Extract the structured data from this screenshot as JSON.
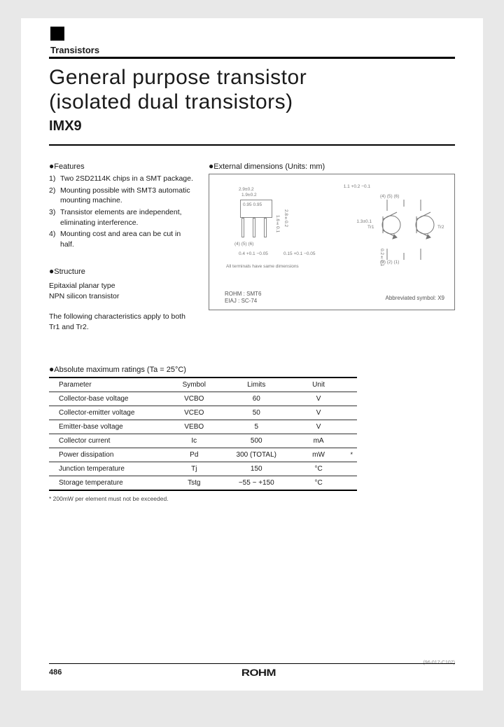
{
  "header": {
    "category": "Transistors"
  },
  "title": {
    "line1": "General purpose transistor",
    "line2": "(isolated dual transistors)"
  },
  "part_number": "IMX9",
  "features": {
    "heading": "Features",
    "items": [
      {
        "num": "1)",
        "text": "Two 2SD2114K chips in a SMT package."
      },
      {
        "num": "2)",
        "text": "Mounting possible with SMT3 automatic mounting machine."
      },
      {
        "num": "3)",
        "text": "Transistor elements are independent, eliminating interference."
      },
      {
        "num": "4)",
        "text": "Mounting cost and area can be cut in half."
      }
    ]
  },
  "structure": {
    "heading": "Structure",
    "line1": "Epitaxial planar type",
    "line2": "NPN silicon transistor"
  },
  "note": "The following characteristics apply to both Tr1 and Tr2.",
  "dimensions": {
    "heading": "External dimensions (Units: mm)",
    "labels": {
      "t1": "2.9±0.2",
      "t2": "1.9±0.2",
      "t3": "0.95 0.95",
      "t4": "1.6±0.1",
      "t5": "2.8±0.2",
      "t6": "0.4 +0.1 −0.05",
      "t7": "0.15 +0.1 −0.05",
      "t8": "1.1 +0.2 −0.1",
      "t9": "1.3±0.1",
      "t10": "0.2±0.1",
      "pins_l": "(4)  (5)  (6)",
      "pins_r": "(3)  (2)  (1)",
      "allnote": "All terminals have same dimensions",
      "rohm": "ROHM : SMT6",
      "eiaj": "EIAJ  : SC-74",
      "abbrev": "Abbreviated symbol: X9",
      "c_pins_t": "(4)  (5)  (6)",
      "c_pins_b": "(3)  (2)  (1)",
      "tr1": "Tr1",
      "tr2": "Tr2"
    }
  },
  "ratings": {
    "heading": "Absolute maximum ratings (Ta = 25°C)",
    "columns": [
      "Parameter",
      "Symbol",
      "Limits",
      "Unit"
    ],
    "rows": [
      {
        "param": "Collector-base voltage",
        "symbol": "VCBO",
        "limits": "60",
        "unit": "V",
        "star": ""
      },
      {
        "param": "Collector-emitter voltage",
        "symbol": "VCEO",
        "limits": "50",
        "unit": "V",
        "star": ""
      },
      {
        "param": "Emitter-base voltage",
        "symbol": "VEBO",
        "limits": "5",
        "unit": "V",
        "star": ""
      },
      {
        "param": "Collector current",
        "symbol": "Ic",
        "limits": "500",
        "unit": "mA",
        "star": ""
      },
      {
        "param": "Power dissipation",
        "symbol": "Pd",
        "limits": "300 (TOTAL)",
        "unit": "mW",
        "star": "*"
      },
      {
        "param": "Junction temperature",
        "symbol": "Tj",
        "limits": "150",
        "unit": "°C",
        "star": ""
      },
      {
        "param": "Storage temperature",
        "symbol": "Tstg",
        "limits": "−55 ~ +150",
        "unit": "°C",
        "star": ""
      }
    ],
    "footnote": "* 200mW per element must not be exceeded."
  },
  "footer": {
    "page": "486",
    "logo": "ROHM",
    "doc_code": "(96-017-C107)"
  }
}
